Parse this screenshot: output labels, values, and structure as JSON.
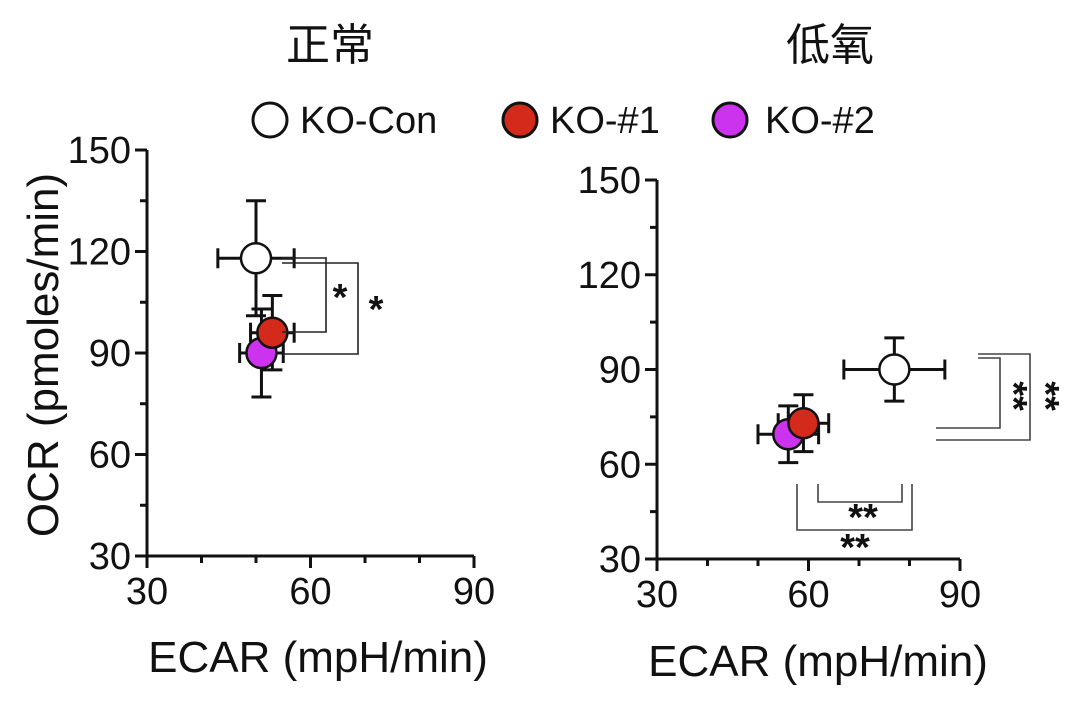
{
  "legend": [
    {
      "label": "KO-Con",
      "color": "#ffffff"
    },
    {
      "label": "KO-#1",
      "color": "#d42a1c"
    },
    {
      "label": "KO-#2",
      "color": "#cc33ee"
    }
  ],
  "chart_data": [
    {
      "type": "scatter",
      "title": "正常",
      "xlabel": "ECAR (mpH/min)",
      "ylabel": "OCR (pmoles/min)",
      "xlim": [
        30,
        90
      ],
      "ylim": [
        30,
        150
      ],
      "xticks": [
        "30",
        "60",
        "90"
      ],
      "yticks": [
        "30",
        "60",
        "90",
        "120",
        "150"
      ],
      "series": [
        {
          "name": "KO-Con",
          "color": "#ffffff",
          "x": 50,
          "y": 118,
          "xerr": 7,
          "yerr": 17
        },
        {
          "name": "KO-#1",
          "color": "#d42a1c",
          "x": 53,
          "y": 96,
          "xerr": 4,
          "yerr": 11
        },
        {
          "name": "KO-#2",
          "color": "#cc33ee",
          "x": 51,
          "y": 90,
          "xerr": 4,
          "yerr": 13
        }
      ],
      "annotations": [
        {
          "text": "*",
          "from": "KO-Con",
          "to": "KO-#1"
        },
        {
          "text": "*",
          "from": "KO-Con",
          "to": "KO-#2"
        }
      ]
    },
    {
      "type": "scatter",
      "title": "低氧",
      "xlabel": "ECAR (mpH/min)",
      "ylabel": "",
      "xlim": [
        30,
        90
      ],
      "ylim": [
        30,
        150
      ],
      "xticks": [
        "30",
        "60",
        "90"
      ],
      "yticks": [
        "30",
        "60",
        "90",
        "120",
        "150"
      ],
      "series": [
        {
          "name": "KO-Con",
          "color": "#ffffff",
          "x": 77,
          "y": 90,
          "xerr": 10,
          "yerr": 10
        },
        {
          "name": "KO-#1",
          "color": "#d42a1c",
          "x": 59,
          "y": 73,
          "xerr": 5,
          "yerr": 9
        },
        {
          "name": "KO-#2",
          "color": "#cc33ee",
          "x": 56,
          "y": 69.5,
          "xerr": 6,
          "yerr": 9
        }
      ],
      "annotations": [
        {
          "text": "**",
          "from": "KO-Con",
          "to": "KO-#1"
        },
        {
          "text": "**",
          "from": "KO-Con",
          "to": "KO-#2"
        },
        {
          "text": "**",
          "from": "KO-Con",
          "to": "KO-#1"
        },
        {
          "text": "**",
          "from": "KO-Con",
          "to": "KO-#2"
        }
      ]
    }
  ]
}
